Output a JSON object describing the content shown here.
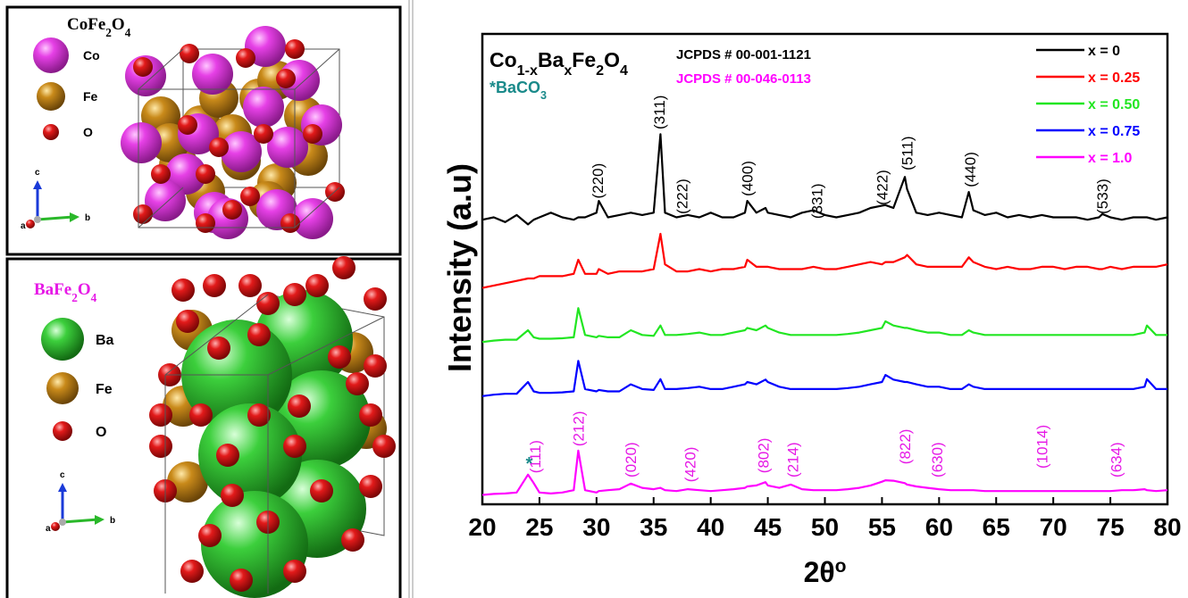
{
  "panels": [
    {
      "title": [
        {
          "text": "CoFe"
        },
        {
          "text": "2",
          "sub": true
        },
        {
          "text": "O"
        },
        {
          "text": "4",
          "sub": true
        }
      ],
      "legend": [
        "Co",
        "Fe",
        "O"
      ],
      "axes": [
        "a",
        "b",
        "c"
      ]
    },
    {
      "title": [
        {
          "text": "BaFe"
        },
        {
          "text": "2",
          "sub": true
        },
        {
          "text": "O"
        },
        {
          "text": "4",
          "sub": true
        }
      ],
      "legend": [
        "Ba",
        "Fe",
        "O"
      ],
      "axes": [
        "a",
        "b",
        "c"
      ]
    }
  ],
  "chart_data": {
    "type": "line",
    "formula": [
      {
        "text": "Co"
      },
      {
        "text": "1-x",
        "sub": true
      },
      {
        "text": "Ba"
      },
      {
        "text": "x",
        "sub": true
      },
      {
        "text": "Fe"
      },
      {
        "text": "2",
        "sub": true
      },
      {
        "text": "O"
      },
      {
        "text": "4",
        "sub": true
      }
    ],
    "impurity": [
      {
        "text": "*BaCO"
      },
      {
        "text": "3",
        "sub": true
      }
    ],
    "references": [
      {
        "text": "JCPDS # 00-001-1121",
        "color": "#000000"
      },
      {
        "text": "JCPDS # 00-046-0113",
        "color": "#ff00ff"
      }
    ],
    "ylabel": "Intensity (a.u)",
    "xlabel": [
      {
        "text": "2θ"
      },
      {
        "text": "o",
        "sup": true
      }
    ],
    "xlim": [
      20,
      80
    ],
    "xticks": [
      20,
      25,
      30,
      35,
      40,
      45,
      50,
      55,
      60,
      65,
      70,
      75,
      80
    ],
    "ylim": [
      0,
      100
    ],
    "x": [
      20,
      21,
      22,
      23,
      24,
      24.5,
      25,
      26,
      27,
      28,
      28.4,
      29,
      30,
      30.2,
      31,
      32,
      33,
      34,
      35,
      35.6,
      36,
      37,
      38,
      39,
      40,
      41,
      42,
      43,
      43.2,
      44,
      44.8,
      45,
      46,
      47,
      48,
      49,
      50,
      51,
      52,
      53,
      54,
      55,
      55.3,
      56,
      57,
      57.2,
      58,
      59,
      60,
      61,
      62,
      62.6,
      63,
      64,
      65,
      66,
      67,
      68,
      69,
      70,
      71,
      72,
      73,
      74,
      74.3,
      75,
      76,
      77,
      78,
      78.2,
      79,
      80
    ],
    "series": [
      {
        "name": "x = 0",
        "color": "#000000",
        "values": [
          60.5,
          61,
          60,
          61.5,
          59.5,
          60.5,
          61,
          62,
          61,
          60.5,
          61,
          61,
          62,
          64.5,
          61,
          61.5,
          62,
          61.5,
          62,
          78.7,
          62,
          61,
          61.5,
          61,
          62,
          61,
          61,
          62,
          64.5,
          62,
          63,
          62,
          61.5,
          61,
          62,
          62.5,
          61.5,
          61,
          61.5,
          62,
          63,
          63.5,
          63.6,
          63,
          69.6,
          67,
          62,
          61.5,
          62,
          61.5,
          61,
          66.4,
          62.5,
          61.5,
          62,
          61,
          61.5,
          61,
          61.5,
          61,
          61,
          61,
          60.5,
          61,
          61.7,
          61,
          60.5,
          61,
          61,
          61,
          60.5,
          61
        ]
      },
      {
        "name": "x = 0.25",
        "color": "#ff0000",
        "values": [
          46,
          46.5,
          47,
          47.5,
          48,
          48,
          48.5,
          48.5,
          48.5,
          49,
          52,
          49,
          49,
          50,
          49,
          49.5,
          49.5,
          49.5,
          50,
          57.5,
          51,
          49.5,
          49.5,
          50,
          49.5,
          50,
          50,
          50.5,
          52,
          50.5,
          50.5,
          50.5,
          50,
          50,
          50,
          50.5,
          50,
          50,
          50.5,
          51,
          51.5,
          51,
          51.5,
          51.5,
          52.5,
          53,
          51,
          50.5,
          50.5,
          50.5,
          50.5,
          52.5,
          51.5,
          50.5,
          50,
          50.5,
          50,
          50,
          50.5,
          50.5,
          50,
          50.5,
          50.5,
          50,
          50,
          50.5,
          50,
          50.5,
          50.5,
          50.5,
          50.5,
          51
        ]
      },
      {
        "name": "x = 0.50",
        "color": "#22e622",
        "values": [
          34.5,
          34.8,
          35,
          35,
          37,
          35.5,
          35.2,
          35.2,
          35.3,
          35.5,
          41.7,
          36,
          35.5,
          35.8,
          35.5,
          35.5,
          37,
          36,
          35.8,
          38,
          36,
          36,
          36.2,
          36.5,
          36,
          36,
          36.5,
          37,
          37.5,
          37,
          38,
          37.5,
          36.5,
          36,
          36,
          36,
          36,
          36,
          36.2,
          36.5,
          37,
          37.5,
          38.9,
          38,
          37.5,
          37.5,
          37,
          36.5,
          36.5,
          36,
          36,
          37,
          36.5,
          36,
          36,
          36,
          36,
          36,
          36,
          36,
          36,
          36,
          36,
          36,
          36,
          36,
          36,
          36,
          36.5,
          38,
          36,
          36
        ]
      },
      {
        "name": "x = 0.75",
        "color": "#0000ff",
        "values": [
          23,
          23.3,
          23.5,
          23.5,
          26,
          24,
          23.7,
          23.7,
          23.8,
          24,
          30.5,
          24.5,
          24,
          24.3,
          24,
          24,
          25.5,
          24.5,
          24.3,
          26.6,
          24.5,
          24.5,
          24.7,
          25,
          24.5,
          24.5,
          25,
          25.5,
          26,
          25.5,
          26.5,
          26,
          25,
          24.5,
          24.5,
          24.5,
          24.5,
          24.5,
          24.7,
          25,
          25.5,
          26,
          27.5,
          26.5,
          26,
          26,
          25.5,
          25,
          25,
          24.5,
          24.5,
          25.5,
          25,
          24.5,
          24.5,
          24.5,
          24.5,
          24.5,
          24.5,
          24.5,
          24.5,
          24.5,
          24.5,
          24.5,
          24.5,
          24.5,
          24.5,
          24.5,
          25,
          26.6,
          24.5,
          24.5
        ]
      },
      {
        "name": "x = 1.0",
        "color": "#ff00ff",
        "values": [
          2,
          2.2,
          2.3,
          2.5,
          6.3,
          4.5,
          2.5,
          2.3,
          2.5,
          3,
          11.4,
          3,
          2.5,
          2.8,
          3,
          3.2,
          4.4,
          3.5,
          3.2,
          3.5,
          3,
          2.8,
          3.2,
          3,
          2.8,
          3,
          3.2,
          3.5,
          3.8,
          4,
          4.7,
          4,
          3.5,
          4.2,
          3.2,
          3,
          3,
          3,
          3.2,
          3.5,
          4,
          4.8,
          5.1,
          5,
          4.5,
          4.2,
          3.8,
          3.5,
          3.2,
          3,
          3,
          3,
          3,
          2.8,
          2.8,
          2.8,
          2.8,
          2.8,
          2.8,
          2.8,
          2.8,
          2.8,
          2.8,
          2.8,
          2.8,
          2.8,
          3,
          3,
          3.2,
          3,
          2.8,
          3
        ]
      }
    ],
    "annotations": [
      {
        "text": "(220)",
        "x": 30.1,
        "y": 65,
        "color": "#000000"
      },
      {
        "text": "(311)",
        "x": 35.5,
        "y": 79.7,
        "color": "#000000"
      },
      {
        "text": "(222)",
        "x": 37.5,
        "y": 61.7,
        "color": "#000000"
      },
      {
        "text": "(400)",
        "x": 43.2,
        "y": 65.5,
        "color": "#000000"
      },
      {
        "text": "(331)",
        "x": 49.3,
        "y": 60.7,
        "color": "#000000"
      },
      {
        "text": "(422)",
        "x": 55,
        "y": 63.6,
        "color": "#000000"
      },
      {
        "text": "(511)",
        "x": 57.2,
        "y": 71,
        "color": "#000000"
      },
      {
        "text": "(440)",
        "x": 62.7,
        "y": 67.4,
        "color": "#000000"
      },
      {
        "text": "(533)",
        "x": 74.3,
        "y": 61.7,
        "color": "#000000"
      },
      {
        "text": "(111)",
        "x": 24.6,
        "y": 6.6,
        "color": "#e619e6"
      },
      {
        "text": "(212)",
        "x": 28.4,
        "y": 12.3,
        "color": "#e619e6"
      },
      {
        "text": "(020)",
        "x": 33,
        "y": 5.7,
        "color": "#e619e6"
      },
      {
        "text": "(420)",
        "x": 38.2,
        "y": 4.7,
        "color": "#e619e6"
      },
      {
        "text": "(802)",
        "x": 44.6,
        "y": 6.6,
        "color": "#e619e6"
      },
      {
        "text": "(214)",
        "x": 47.2,
        "y": 5.7,
        "color": "#e619e6"
      },
      {
        "text": "(822)",
        "x": 57,
        "y": 8.5,
        "color": "#e619e6"
      },
      {
        "text": "(630)",
        "x": 59.8,
        "y": 5.7,
        "color": "#e619e6"
      },
      {
        "text": "(1014)",
        "x": 69,
        "y": 7.6,
        "color": "#e619e6"
      },
      {
        "text": "(634)",
        "x": 75.5,
        "y": 5.7,
        "color": "#e619e6"
      }
    ],
    "markers": [
      {
        "text": "*",
        "x": 24.1,
        "y": 8.9,
        "color": "#1a8a8a"
      }
    ],
    "legend": "top-right"
  }
}
